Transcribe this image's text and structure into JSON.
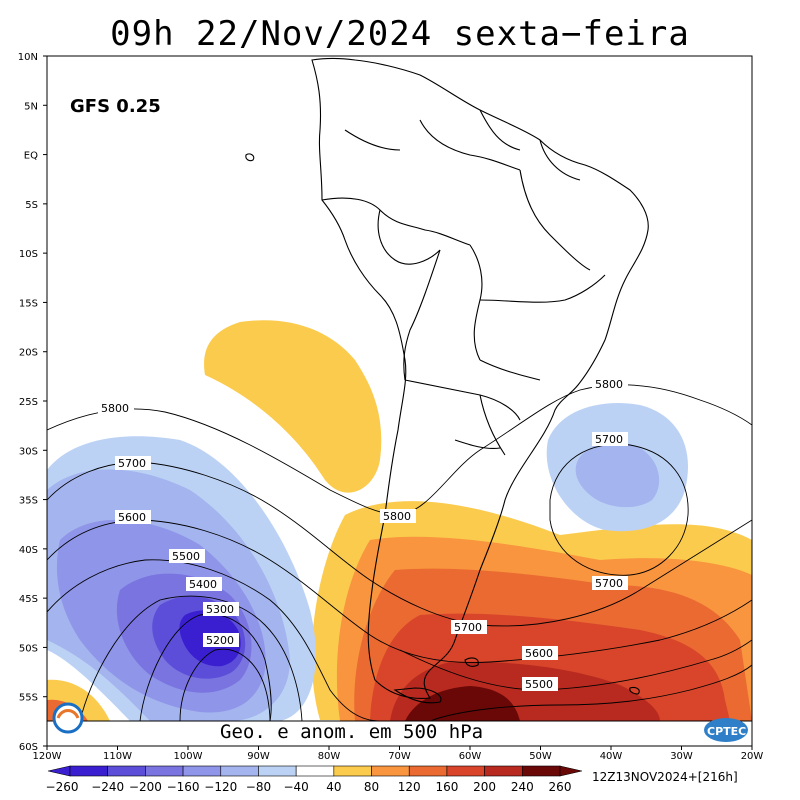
{
  "title": "09h 22/Nov/2024 sexta−feira",
  "model_label": "GFS 0.25",
  "caption": "Geo. e anom. em 500 hPa",
  "run_info": "12Z13NOV2024+[216h]",
  "logo_text": "CPTEC",
  "lat_labels": [
    "10N",
    "5N",
    "EQ",
    "5S",
    "10S",
    "15S",
    "20S",
    "25S",
    "30S",
    "35S",
    "40S",
    "45S",
    "50S",
    "55S",
    "60S"
  ],
  "lon_labels": [
    "120W",
    "110W",
    "100W",
    "90W",
    "80W",
    "70W",
    "60W",
    "50W",
    "40W",
    "30W",
    "20W"
  ],
  "contour_labels": [
    {
      "text": "5800",
      "pos": "west"
    },
    {
      "text": "5800",
      "pos": "center"
    },
    {
      "text": "5800",
      "pos": "east"
    },
    {
      "text": "5700",
      "pos": "west"
    },
    {
      "text": "5700",
      "pos": "east-low-center"
    },
    {
      "text": "5700",
      "pos": "east"
    },
    {
      "text": "5700",
      "pos": "south"
    },
    {
      "text": "5600",
      "pos": "west"
    },
    {
      "text": "5600",
      "pos": "south"
    },
    {
      "text": "5500",
      "pos": "west"
    },
    {
      "text": "5500",
      "pos": "south"
    },
    {
      "text": "5400",
      "pos": "west"
    },
    {
      "text": "5300",
      "pos": "west"
    },
    {
      "text": "5200",
      "pos": "west"
    }
  ],
  "colorbar": {
    "ticks": [
      "−260",
      "−240",
      "−200",
      "−160",
      "−120",
      "−80",
      "−40",
      "40",
      "80",
      "120",
      "160",
      "200",
      "240",
      "260"
    ],
    "colors": [
      "#3a1fd0",
      "#5c4ed8",
      "#7a74e0",
      "#8f95e8",
      "#a4b4ee",
      "#bcd2f5",
      "#ffffff",
      "#fbcb4e",
      "#f8953e",
      "#ea6a32",
      "#d8452a",
      "#b82a20",
      "#6a0808"
    ]
  }
}
